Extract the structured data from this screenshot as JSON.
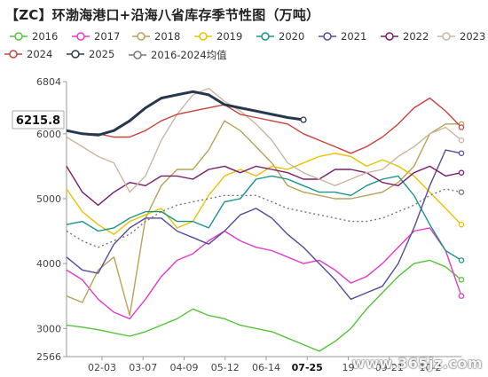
{
  "title": "【ZC】环渤海港口+沿海八省库存季节性图（万吨）",
  "watermark": "www.365jz.com",
  "colors": {
    "2016": "#54c43b",
    "2017": "#e23bc8",
    "2018": "#b5a35a",
    "2019": "#eac300",
    "2020": "#1b938f",
    "2021": "#554b9c",
    "2022": "#7a1d6b",
    "2023": "#c8b8a3",
    "2024": "#c9423c",
    "2025": "#26384d",
    "avg": "#777777"
  },
  "chart_data": {
    "type": "line",
    "title": "【ZC】环渤海港口+沿海八省库存季节性图（万吨）",
    "xlabel": "",
    "ylabel": "",
    "ylim": [
      2566,
      6804
    ],
    "y_ticks": [
      2566,
      3000,
      4000,
      5000,
      6000,
      6804
    ],
    "x_ticks": [
      "02-03",
      "03-07",
      "04-09",
      "05-12",
      "06-14",
      "07-25",
      "19",
      "09-21",
      "10-2"
    ],
    "highlight_tick": "07-25",
    "current_value_label": "6215.8",
    "current_value": 6215.8,
    "legend": [
      "2016",
      "2017",
      "2018",
      "2019",
      "2020",
      "2021",
      "2022",
      "2023",
      "2024",
      "2025",
      "2016-2024均值"
    ],
    "x_domain": [
      0,
      100
    ],
    "series": [
      {
        "name": "2016",
        "key": "2016",
        "x": [
          0,
          4,
          8,
          12,
          16,
          20,
          24,
          28,
          32,
          36,
          40,
          44,
          48,
          52,
          56,
          60,
          64,
          68,
          72,
          76,
          80,
          84,
          88,
          92,
          96,
          100
        ],
        "values": [
          3050,
          3020,
          2980,
          2930,
          2880,
          2950,
          3050,
          3150,
          3300,
          3200,
          3150,
          3050,
          3000,
          2950,
          2850,
          2750,
          2650,
          2800,
          3000,
          3300,
          3550,
          3800,
          4000,
          4050,
          3950,
          3750
        ]
      },
      {
        "name": "2017",
        "key": "2017",
        "x": [
          0,
          4,
          8,
          12,
          16,
          20,
          24,
          28,
          32,
          36,
          40,
          44,
          48,
          52,
          56,
          60,
          64,
          68,
          72,
          76,
          80,
          84,
          88,
          92,
          96,
          100
        ],
        "values": [
          3900,
          3750,
          3450,
          3250,
          3150,
          3450,
          3800,
          4050,
          4150,
          4350,
          4500,
          4350,
          4250,
          4200,
          4100,
          4000,
          4050,
          3900,
          3700,
          3800,
          4000,
          4250,
          4500,
          4550,
          4200,
          3500
        ]
      },
      {
        "name": "2018",
        "key": "2018",
        "x": [
          0,
          4,
          8,
          12,
          16,
          20,
          24,
          28,
          32,
          36,
          40,
          44,
          48,
          52,
          56,
          60,
          64,
          68,
          72,
          76,
          80,
          84,
          88,
          92,
          96,
          100
        ],
        "values": [
          3500,
          3400,
          3900,
          4100,
          3200,
          4700,
          5200,
          5450,
          5450,
          5750,
          6200,
          6050,
          5800,
          5550,
          5200,
          5100,
          5050,
          5000,
          5000,
          5050,
          5100,
          5250,
          5500,
          6000,
          6150,
          6150
        ]
      },
      {
        "name": "2019",
        "key": "2019",
        "x": [
          0,
          4,
          8,
          12,
          16,
          20,
          24,
          28,
          32,
          36,
          40,
          44,
          48,
          52,
          56,
          60,
          64,
          68,
          72,
          76,
          80,
          84,
          88,
          92,
          96,
          100
        ],
        "values": [
          5150,
          4800,
          4600,
          4450,
          4650,
          4750,
          4850,
          4550,
          4650,
          5050,
          5350,
          5450,
          5350,
          5500,
          5450,
          5550,
          5650,
          5700,
          5650,
          5500,
          5600,
          5500,
          5350,
          5100,
          4850,
          4600
        ]
      },
      {
        "name": "2020",
        "key": "2020",
        "x": [
          0,
          4,
          8,
          12,
          16,
          20,
          24,
          28,
          32,
          36,
          40,
          44,
          48,
          52,
          56,
          60,
          64,
          68,
          72,
          76,
          80,
          84,
          88,
          92,
          96,
          100
        ],
        "values": [
          4600,
          4650,
          4500,
          4550,
          4700,
          4800,
          4800,
          4650,
          4650,
          4550,
          4950,
          5000,
          5300,
          5350,
          5300,
          5200,
          5100,
          5100,
          5050,
          5200,
          5300,
          5350,
          5050,
          4600,
          4200,
          4050
        ]
      },
      {
        "name": "2021",
        "key": "2021",
        "x": [
          0,
          4,
          8,
          12,
          16,
          20,
          24,
          28,
          32,
          36,
          40,
          44,
          48,
          52,
          56,
          60,
          64,
          68,
          72,
          76,
          80,
          84,
          88,
          92,
          96,
          100
        ],
        "values": [
          4100,
          3900,
          3850,
          4300,
          4550,
          4700,
          4700,
          4500,
          4400,
          4300,
          4500,
          4750,
          4850,
          4700,
          4450,
          4250,
          4000,
          3750,
          3450,
          3550,
          3650,
          4000,
          4550,
          5200,
          5750,
          5700
        ]
      },
      {
        "name": "2022",
        "key": "2022",
        "x": [
          0,
          4,
          8,
          12,
          16,
          20,
          24,
          28,
          32,
          36,
          40,
          44,
          48,
          52,
          56,
          60,
          64,
          68,
          72,
          76,
          80,
          84,
          88,
          92,
          96,
          100
        ],
        "values": [
          5500,
          5100,
          4900,
          5100,
          5250,
          5200,
          5350,
          5350,
          5300,
          5450,
          5500,
          5400,
          5500,
          5450,
          5400,
          5300,
          5300,
          5450,
          5450,
          5400,
          5250,
          5200,
          5400,
          5500,
          5350,
          5400
        ]
      },
      {
        "name": "2023",
        "key": "2023",
        "x": [
          0,
          4,
          8,
          12,
          16,
          20,
          24,
          28,
          32,
          36,
          40,
          44,
          48,
          52,
          56,
          60,
          64,
          68,
          72,
          76,
          80,
          84,
          88,
          92,
          96,
          100
        ],
        "values": [
          5950,
          5800,
          5650,
          5550,
          5100,
          5350,
          5900,
          6300,
          6600,
          6700,
          6500,
          6350,
          6150,
          5900,
          5550,
          5400,
          5300,
          5200,
          5300,
          5400,
          5450,
          5650,
          5800,
          6000,
          6100,
          5900
        ]
      },
      {
        "name": "2024",
        "key": "2024",
        "x": [
          0,
          4,
          8,
          12,
          16,
          20,
          24,
          28,
          32,
          36,
          40,
          44,
          48,
          52,
          56,
          60,
          64,
          68,
          72,
          76,
          80,
          84,
          88,
          92,
          96,
          100
        ],
        "values": [
          6050,
          6000,
          6000,
          5950,
          5950,
          6050,
          6200,
          6300,
          6350,
          6400,
          6450,
          6300,
          6250,
          6200,
          6150,
          6000,
          5900,
          5800,
          5700,
          5800,
          5950,
          6150,
          6400,
          6550,
          6350,
          6100
        ]
      },
      {
        "name": "2025",
        "key": "2025",
        "x": [
          0,
          4,
          8,
          12,
          16,
          20,
          24,
          28,
          32,
          36,
          40,
          44,
          48,
          52,
          56,
          60
        ],
        "values": [
          6050,
          6000,
          5980,
          6050,
          6200,
          6400,
          6550,
          6600,
          6650,
          6600,
          6450,
          6400,
          6350,
          6300,
          6250,
          6215.8
        ]
      },
      {
        "name": "2016-2024均值",
        "key": "avg",
        "dotted": true,
        "x": [
          0,
          4,
          8,
          12,
          16,
          20,
          24,
          28,
          32,
          36,
          40,
          44,
          48,
          52,
          56,
          60,
          64,
          68,
          72,
          76,
          80,
          84,
          88,
          92,
          96,
          100
        ],
        "values": [
          4500,
          4350,
          4250,
          4350,
          4450,
          4650,
          4800,
          4900,
          4950,
          5000,
          5050,
          5050,
          5050,
          4950,
          4850,
          4800,
          4750,
          4700,
          4650,
          4650,
          4700,
          4800,
          4900,
          5050,
          5150,
          5100
        ]
      }
    ]
  }
}
